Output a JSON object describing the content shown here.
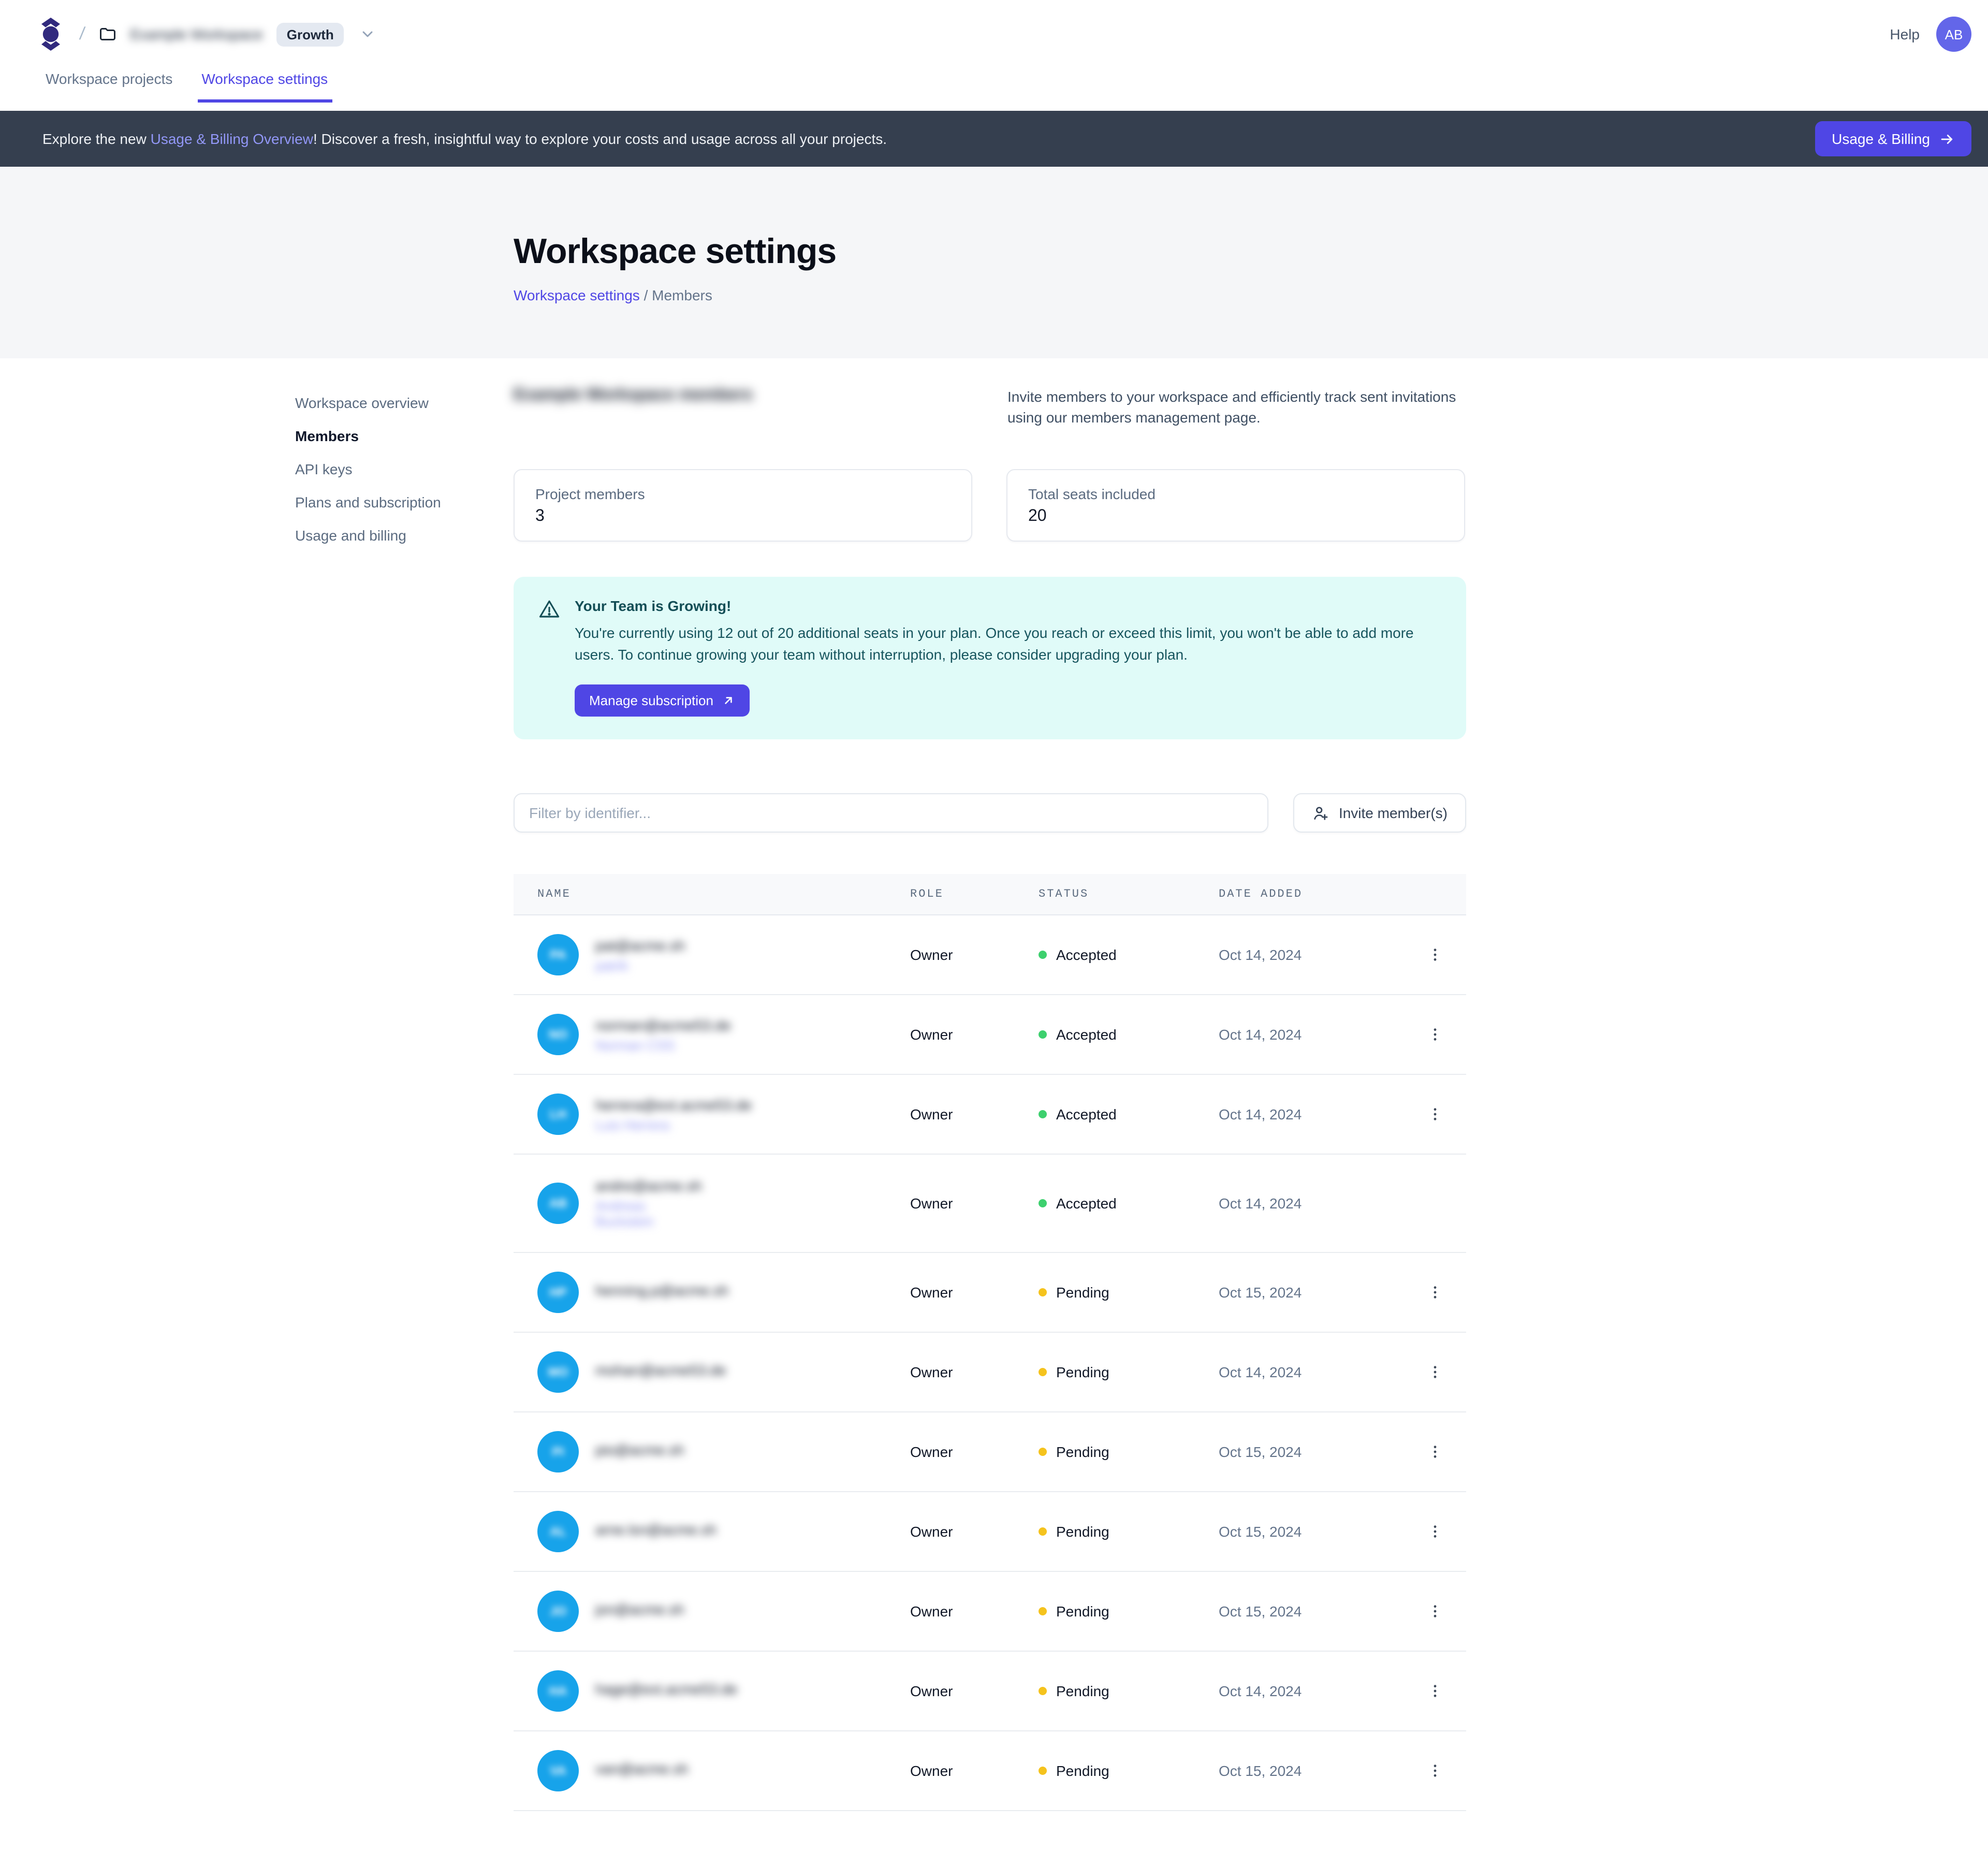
{
  "colors": {
    "accent": "#4f46e5",
    "banner_bg": "#353f4f",
    "alert_bg": "#e0fbf8",
    "alert_text": "#134e56",
    "avatar_blue": "#17a3ea",
    "status": {
      "Accepted": "#3dd06e",
      "Pending": "#f5c31d"
    }
  },
  "topbar": {
    "logo_icon": "company-logo",
    "separator": "/",
    "workspace_name_redacted": "Example Workspace",
    "plan_badge": "Growth",
    "help_label": "Help",
    "avatar_initials": "AB"
  },
  "tabs": {
    "projects": "Workspace projects",
    "settings": "Workspace settings"
  },
  "banner": {
    "text_before": "Explore the new ",
    "link_text": "Usage & Billing Overview",
    "text_after": "! Discover a fresh, insightful way to explore your costs and usage across all your projects.",
    "button_label": "Usage & Billing"
  },
  "hero": {
    "title": "Workspace settings",
    "breadcrumb_link": "Workspace settings",
    "breadcrumb_separator": " / ",
    "breadcrumb_current": "Members"
  },
  "sidebar": {
    "items": [
      {
        "label": "Workspace overview",
        "active": false
      },
      {
        "label": "Members",
        "active": true
      },
      {
        "label": "API keys",
        "active": false
      },
      {
        "label": "Plans and subscription",
        "active": false
      },
      {
        "label": "Usage and billing",
        "active": false
      }
    ]
  },
  "members_section": {
    "title_redacted": "Example Workspace members",
    "description": "Invite members to your workspace and efficiently track sent invitations using our members management page.",
    "stats": [
      {
        "label": "Project members",
        "value": "3"
      },
      {
        "label": "Total seats included",
        "value": "20"
      }
    ],
    "alert": {
      "title": "Your Team is Growing!",
      "body": "You're currently using 12 out of 20 additional seats in your plan. Once you reach or exceed this limit, you won't be able to add more users. To continue growing your team without interruption, please consider upgrading your plan.",
      "button_label": "Manage subscription"
    },
    "filter_placeholder": "Filter by identifier...",
    "invite_button_label": "Invite member(s)"
  },
  "table": {
    "columns": [
      "NAME",
      "ROLE",
      "STATUS",
      "DATE ADDED"
    ],
    "rows": [
      {
        "redacted": true,
        "initials": "PA",
        "email_redacted": "pat@acme.sh",
        "secondary_redacted": [
          "patrik"
        ],
        "role": "Owner",
        "status": "Accepted",
        "date_added": "Oct 14, 2024",
        "has_menu": true
      },
      {
        "redacted": true,
        "initials": "NO",
        "email_redacted": "norman@acme53.de",
        "secondary_redacted": [
          "Norman CSS"
        ],
        "role": "Owner",
        "status": "Accepted",
        "date_added": "Oct 14, 2024",
        "has_menu": true
      },
      {
        "redacted": true,
        "initials": "LH",
        "email_redacted": "herrera@ext.acme53.de",
        "secondary_redacted": [
          "Luis Herrera"
        ],
        "role": "Owner",
        "status": "Accepted",
        "date_added": "Oct 14, 2024",
        "has_menu": true
      },
      {
        "redacted": true,
        "initials": "AB",
        "email_redacted": "andre@acme.sh",
        "secondary_redacted": [
          "Andreas",
          "Buckstein"
        ],
        "role": "Owner",
        "status": "Accepted",
        "date_added": "Oct 14, 2024",
        "has_menu": false
      },
      {
        "redacted": true,
        "initials": "HP",
        "email_redacted": "henning.p@acme.sh",
        "secondary_redacted": [],
        "role": "Owner",
        "status": "Pending",
        "date_added": "Oct 15, 2024",
        "has_menu": true
      },
      {
        "redacted": true,
        "initials": "MO",
        "email_redacted": "mohan@acme53.de",
        "secondary_redacted": [],
        "role": "Owner",
        "status": "Pending",
        "date_added": "Oct 14, 2024",
        "has_menu": true
      },
      {
        "redacted": true,
        "initials": "PI",
        "email_redacted": "pio@acme.sh",
        "secondary_redacted": [],
        "role": "Owner",
        "status": "Pending",
        "date_added": "Oct 15, 2024",
        "has_menu": true
      },
      {
        "redacted": true,
        "initials": "AL",
        "email_redacted": "arne.lsn@acme.sh",
        "secondary_redacted": [],
        "role": "Owner",
        "status": "Pending",
        "date_added": "Oct 15, 2024",
        "has_menu": true
      },
      {
        "redacted": true,
        "initials": "JO",
        "email_redacted": "jon@acme.sh",
        "secondary_redacted": [],
        "role": "Owner",
        "status": "Pending",
        "date_added": "Oct 15, 2024",
        "has_menu": true
      },
      {
        "redacted": true,
        "initials": "HA",
        "email_redacted": "hage@ext.acme53.de",
        "secondary_redacted": [],
        "role": "Owner",
        "status": "Pending",
        "date_added": "Oct 14, 2024",
        "has_menu": true
      },
      {
        "redacted": true,
        "initials": "VA",
        "email_redacted": "van@acme.sh",
        "secondary_redacted": [],
        "role": "Owner",
        "status": "Pending",
        "date_added": "Oct 15, 2024",
        "has_menu": true
      }
    ]
  }
}
